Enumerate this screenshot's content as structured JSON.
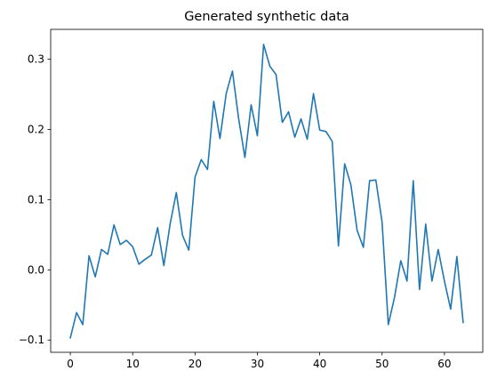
{
  "chart_data": {
    "type": "line",
    "title": "Generated synthetic data",
    "xlabel": "",
    "ylabel": "",
    "xlim": [
      -3.15,
      66.15
    ],
    "ylim": [
      -0.1175,
      0.3425
    ],
    "grid": false,
    "x_ticks": [
      0,
      10,
      20,
      30,
      40,
      50,
      60
    ],
    "y_ticks": [
      -0.1,
      0.0,
      0.1,
      0.2,
      0.3
    ],
    "y_tick_labels": [
      "−0.1",
      "0.0",
      "0.1",
      "0.2",
      "0.3"
    ],
    "series": [
      {
        "color": "#1f77b4",
        "x": [
          0,
          1,
          2,
          3,
          4,
          5,
          6,
          7,
          8,
          9,
          10,
          11,
          12,
          13,
          14,
          15,
          16,
          17,
          18,
          19,
          20,
          21,
          22,
          23,
          24,
          25,
          26,
          27,
          28,
          29,
          30,
          31,
          32,
          33,
          34,
          35,
          36,
          37,
          38,
          39,
          40,
          41,
          42,
          43,
          44,
          45,
          46,
          47,
          48,
          49,
          50,
          51,
          52,
          53,
          54,
          55,
          56,
          57,
          58,
          59,
          60,
          61,
          62,
          63
        ],
        "values": [
          -0.097,
          -0.061,
          -0.078,
          0.02,
          -0.01,
          0.029,
          0.022,
          0.064,
          0.036,
          0.042,
          0.033,
          0.008,
          0.015,
          0.021,
          0.06,
          0.006,
          0.065,
          0.11,
          0.049,
          0.028,
          0.132,
          0.157,
          0.143,
          0.24,
          0.187,
          0.251,
          0.283,
          0.215,
          0.16,
          0.235,
          0.191,
          0.321,
          0.29,
          0.278,
          0.21,
          0.225,
          0.189,
          0.215,
          0.186,
          0.251,
          0.199,
          0.197,
          0.183,
          0.034,
          0.151,
          0.121,
          0.056,
          0.032,
          0.127,
          0.128,
          0.068,
          -0.078,
          -0.039,
          0.013,
          -0.016,
          0.127,
          -0.028,
          0.065,
          -0.016,
          0.029,
          -0.016,
          -0.056,
          0.019,
          -0.075
        ]
      }
    ]
  }
}
